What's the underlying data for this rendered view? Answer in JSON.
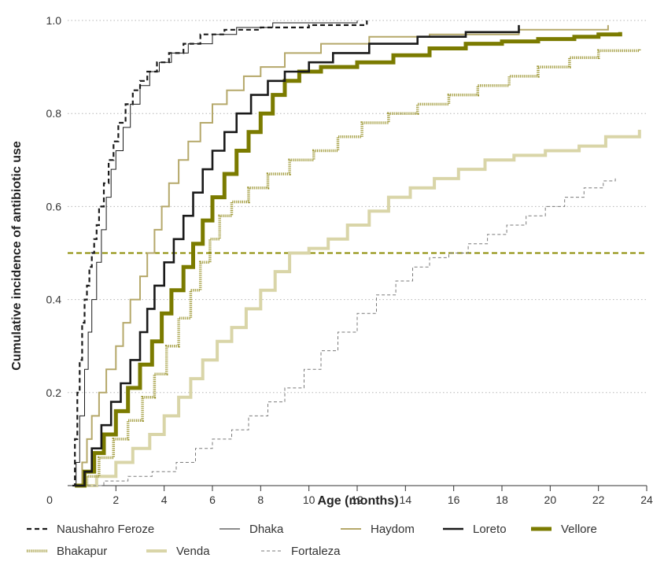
{
  "chart_data": {
    "type": "line",
    "step": true,
    "xlabel": "Age (months)",
    "ylabel": "Cumulative incidence of antibiotic use",
    "xlim": [
      0,
      24
    ],
    "ylim": [
      0,
      1.0
    ],
    "x_ticks": [
      0,
      2,
      4,
      6,
      8,
      10,
      12,
      14,
      16,
      18,
      20,
      22,
      24
    ],
    "x_tick_labels": [
      "0",
      "2",
      "4",
      "6",
      "8",
      "10",
      "12",
      "14",
      "16",
      "18",
      "20",
      "22",
      "24"
    ],
    "y_ticks": [
      0.2,
      0.4,
      0.6,
      0.8,
      1.0
    ],
    "y_tick_labels": [
      "0.2",
      "0.4",
      "0.6",
      "0.8",
      "1.0"
    ],
    "grid_y": true,
    "reference_line": {
      "y": 0.5,
      "color": "#8b8b00",
      "style": "dashed"
    },
    "legend_position": "bottom",
    "series": [
      {
        "name": "Naushahro Feroze",
        "color": "#1a1a1a",
        "width": 2.2,
        "dash": "6,4",
        "points": [
          [
            0.2,
            0.0
          ],
          [
            0.3,
            0.1
          ],
          [
            0.4,
            0.2
          ],
          [
            0.5,
            0.27
          ],
          [
            0.6,
            0.35
          ],
          [
            0.7,
            0.4
          ],
          [
            0.8,
            0.43
          ],
          [
            0.9,
            0.47
          ],
          [
            1.0,
            0.5
          ],
          [
            1.1,
            0.53
          ],
          [
            1.2,
            0.56
          ],
          [
            1.3,
            0.6
          ],
          [
            1.5,
            0.65
          ],
          [
            1.7,
            0.7
          ],
          [
            1.9,
            0.74
          ],
          [
            2.1,
            0.78
          ],
          [
            2.4,
            0.82
          ],
          [
            2.7,
            0.85
          ],
          [
            3.0,
            0.87
          ],
          [
            3.3,
            0.89
          ],
          [
            3.7,
            0.91
          ],
          [
            4.2,
            0.93
          ],
          [
            4.8,
            0.95
          ],
          [
            5.5,
            0.97
          ],
          [
            6.5,
            0.98
          ],
          [
            8.0,
            0.985
          ],
          [
            10.0,
            0.99
          ],
          [
            12.4,
            1.0
          ]
        ]
      },
      {
        "name": "Dhaka",
        "color": "#1a1a1a",
        "width": 1,
        "points": [
          [
            0.2,
            0.0
          ],
          [
            0.35,
            0.05
          ],
          [
            0.5,
            0.15
          ],
          [
            0.7,
            0.25
          ],
          [
            0.85,
            0.33
          ],
          [
            1.0,
            0.4
          ],
          [
            1.2,
            0.48
          ],
          [
            1.4,
            0.55
          ],
          [
            1.6,
            0.62
          ],
          [
            1.8,
            0.68
          ],
          [
            2.0,
            0.72
          ],
          [
            2.3,
            0.77
          ],
          [
            2.6,
            0.82
          ],
          [
            3.0,
            0.86
          ],
          [
            3.4,
            0.89
          ],
          [
            3.8,
            0.91
          ],
          [
            4.3,
            0.93
          ],
          [
            5.0,
            0.95
          ],
          [
            6.0,
            0.97
          ],
          [
            7.0,
            0.985
          ],
          [
            8.5,
            0.995
          ],
          [
            12.0,
            1.0
          ]
        ]
      },
      {
        "name": "Haydom",
        "color": "#b5a86a",
        "width": 2,
        "points": [
          [
            0.3,
            0.0
          ],
          [
            0.6,
            0.05
          ],
          [
            0.8,
            0.1
          ],
          [
            1.0,
            0.15
          ],
          [
            1.3,
            0.2
          ],
          [
            1.6,
            0.25
          ],
          [
            2.0,
            0.3
          ],
          [
            2.3,
            0.35
          ],
          [
            2.6,
            0.4
          ],
          [
            3.0,
            0.45
          ],
          [
            3.3,
            0.5
          ],
          [
            3.6,
            0.55
          ],
          [
            3.9,
            0.6
          ],
          [
            4.2,
            0.65
          ],
          [
            4.6,
            0.7
          ],
          [
            5.0,
            0.74
          ],
          [
            5.5,
            0.78
          ],
          [
            6.0,
            0.82
          ],
          [
            6.6,
            0.85
          ],
          [
            7.3,
            0.88
          ],
          [
            8.0,
            0.9
          ],
          [
            9.0,
            0.93
          ],
          [
            10.5,
            0.95
          ],
          [
            12.5,
            0.965
          ],
          [
            15.0,
            0.97
          ],
          [
            18.7,
            0.98
          ],
          [
            22.4,
            0.99
          ]
        ]
      },
      {
        "name": "Loreto",
        "color": "#1a1a1a",
        "width": 2.6,
        "points": [
          [
            0.3,
            0.0
          ],
          [
            0.7,
            0.03
          ],
          [
            1.0,
            0.08
          ],
          [
            1.4,
            0.13
          ],
          [
            1.8,
            0.18
          ],
          [
            2.2,
            0.22
          ],
          [
            2.6,
            0.27
          ],
          [
            3.0,
            0.33
          ],
          [
            3.3,
            0.38
          ],
          [
            3.6,
            0.43
          ],
          [
            4.0,
            0.48
          ],
          [
            4.4,
            0.53
          ],
          [
            4.8,
            0.58
          ],
          [
            5.2,
            0.63
          ],
          [
            5.6,
            0.68
          ],
          [
            6.0,
            0.72
          ],
          [
            6.5,
            0.76
          ],
          [
            7.0,
            0.8
          ],
          [
            7.6,
            0.84
          ],
          [
            8.3,
            0.87
          ],
          [
            9.0,
            0.89
          ],
          [
            10.0,
            0.91
          ],
          [
            11.0,
            0.93
          ],
          [
            12.5,
            0.95
          ],
          [
            14.5,
            0.965
          ],
          [
            16.5,
            0.975
          ],
          [
            18.7,
            0.99
          ]
        ]
      },
      {
        "name": "Vellore",
        "color": "#7b7b00",
        "width": 5,
        "points": [
          [
            0.3,
            0.0
          ],
          [
            0.7,
            0.03
          ],
          [
            1.1,
            0.07
          ],
          [
            1.5,
            0.11
          ],
          [
            2.0,
            0.16
          ],
          [
            2.5,
            0.21
          ],
          [
            3.0,
            0.26
          ],
          [
            3.5,
            0.31
          ],
          [
            3.9,
            0.37
          ],
          [
            4.3,
            0.42
          ],
          [
            4.8,
            0.47
          ],
          [
            5.2,
            0.52
          ],
          [
            5.6,
            0.57
          ],
          [
            6.0,
            0.62
          ],
          [
            6.5,
            0.67
          ],
          [
            7.0,
            0.72
          ],
          [
            7.5,
            0.76
          ],
          [
            8.0,
            0.8
          ],
          [
            8.5,
            0.84
          ],
          [
            9.0,
            0.87
          ],
          [
            9.6,
            0.89
          ],
          [
            10.5,
            0.9
          ],
          [
            12.0,
            0.91
          ],
          [
            13.5,
            0.925
          ],
          [
            15.0,
            0.94
          ],
          [
            16.5,
            0.95
          ],
          [
            18.0,
            0.955
          ],
          [
            19.5,
            0.96
          ],
          [
            21.0,
            0.965
          ],
          [
            22.0,
            0.97
          ],
          [
            22.9,
            0.975
          ]
        ]
      },
      {
        "name": "Bhakapur",
        "color": "#a09a3a",
        "width": 3.5,
        "dash": "1.2,1.3",
        "points": [
          [
            0.4,
            0.0
          ],
          [
            0.8,
            0.02
          ],
          [
            1.3,
            0.06
          ],
          [
            1.9,
            0.1
          ],
          [
            2.5,
            0.14
          ],
          [
            3.1,
            0.19
          ],
          [
            3.6,
            0.24
          ],
          [
            4.1,
            0.3
          ],
          [
            4.6,
            0.36
          ],
          [
            5.1,
            0.42
          ],
          [
            5.5,
            0.48
          ],
          [
            5.9,
            0.53
          ],
          [
            6.3,
            0.58
          ],
          [
            6.8,
            0.61
          ],
          [
            7.5,
            0.64
          ],
          [
            8.3,
            0.67
          ],
          [
            9.2,
            0.7
          ],
          [
            10.2,
            0.72
          ],
          [
            11.2,
            0.75
          ],
          [
            12.2,
            0.78
          ],
          [
            13.3,
            0.8
          ],
          [
            14.5,
            0.82
          ],
          [
            15.8,
            0.84
          ],
          [
            17.0,
            0.86
          ],
          [
            18.3,
            0.88
          ],
          [
            19.5,
            0.9
          ],
          [
            20.8,
            0.92
          ],
          [
            22.0,
            0.935
          ],
          [
            23.7,
            0.94
          ]
        ]
      },
      {
        "name": "Venda",
        "color": "#d9d5a8",
        "width": 4,
        "points": [
          [
            0.5,
            0.0
          ],
          [
            1.2,
            0.02
          ],
          [
            2.0,
            0.05
          ],
          [
            2.7,
            0.08
          ],
          [
            3.4,
            0.11
          ],
          [
            4.0,
            0.15
          ],
          [
            4.6,
            0.19
          ],
          [
            5.1,
            0.23
          ],
          [
            5.6,
            0.27
          ],
          [
            6.2,
            0.31
          ],
          [
            6.8,
            0.34
          ],
          [
            7.4,
            0.38
          ],
          [
            8.0,
            0.42
          ],
          [
            8.6,
            0.46
          ],
          [
            9.2,
            0.5
          ],
          [
            10.0,
            0.51
          ],
          [
            10.8,
            0.53
          ],
          [
            11.6,
            0.56
          ],
          [
            12.5,
            0.59
          ],
          [
            13.3,
            0.62
          ],
          [
            14.2,
            0.64
          ],
          [
            15.2,
            0.66
          ],
          [
            16.2,
            0.68
          ],
          [
            17.3,
            0.7
          ],
          [
            18.5,
            0.71
          ],
          [
            19.8,
            0.72
          ],
          [
            21.2,
            0.73
          ],
          [
            22.3,
            0.75
          ],
          [
            23.7,
            0.765
          ]
        ]
      },
      {
        "name": "Fortaleza",
        "color": "#7a7a7a",
        "width": 1,
        "dash": "4,3",
        "points": [
          [
            0.6,
            0.0
          ],
          [
            1.5,
            0.01
          ],
          [
            2.5,
            0.02
          ],
          [
            3.5,
            0.03
          ],
          [
            4.5,
            0.05
          ],
          [
            5.3,
            0.08
          ],
          [
            6.0,
            0.1
          ],
          [
            6.8,
            0.12
          ],
          [
            7.5,
            0.15
          ],
          [
            8.3,
            0.18
          ],
          [
            9.0,
            0.21
          ],
          [
            9.8,
            0.25
          ],
          [
            10.5,
            0.29
          ],
          [
            11.2,
            0.33
          ],
          [
            12.0,
            0.37
          ],
          [
            12.8,
            0.41
          ],
          [
            13.6,
            0.44
          ],
          [
            14.3,
            0.47
          ],
          [
            15.0,
            0.49
          ],
          [
            15.8,
            0.5
          ],
          [
            16.6,
            0.52
          ],
          [
            17.4,
            0.54
          ],
          [
            18.2,
            0.56
          ],
          [
            19.0,
            0.58
          ],
          [
            19.8,
            0.6
          ],
          [
            20.6,
            0.62
          ],
          [
            21.4,
            0.64
          ],
          [
            22.2,
            0.655
          ],
          [
            22.7,
            0.665
          ]
        ]
      }
    ]
  }
}
